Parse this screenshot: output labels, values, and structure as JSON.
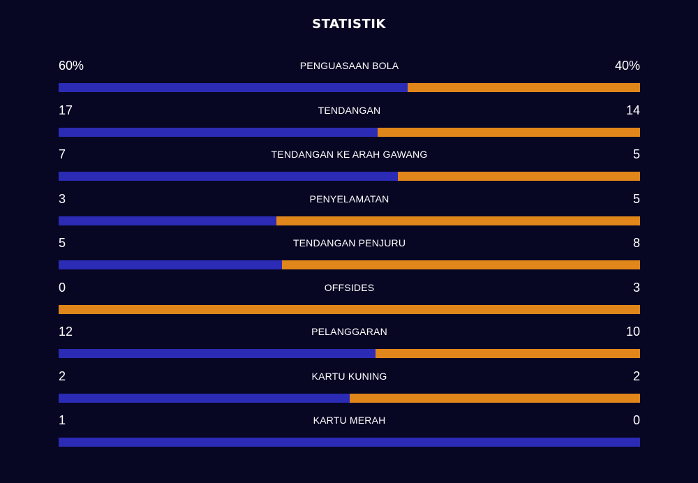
{
  "title": "STATISTIK",
  "colors": {
    "background": "#070724",
    "home_bar": "#2b2bb5",
    "away_bar": "#e0861a"
  },
  "stats": [
    {
      "label": "PENGUASAAN BOLA",
      "home": "60%",
      "away": "40%",
      "home_value": 60,
      "away_value": 40
    },
    {
      "label": "TENDANGAN",
      "home": "17",
      "away": "14",
      "home_value": 17,
      "away_value": 14
    },
    {
      "label": "TENDANGAN KE ARAH GAWANG",
      "home": "7",
      "away": "5",
      "home_value": 7,
      "away_value": 5
    },
    {
      "label": "PENYELAMATAN",
      "home": "3",
      "away": "5",
      "home_value": 3,
      "away_value": 5
    },
    {
      "label": "TENDANGAN PENJURU",
      "home": "5",
      "away": "8",
      "home_value": 5,
      "away_value": 8
    },
    {
      "label": "OFFSIDES",
      "home": "0",
      "away": "3",
      "home_value": 0,
      "away_value": 3
    },
    {
      "label": "PELANGGARAN",
      "home": "12",
      "away": "10",
      "home_value": 12,
      "away_value": 10
    },
    {
      "label": "KARTU KUNING",
      "home": "2",
      "away": "2",
      "home_value": 2,
      "away_value": 2
    },
    {
      "label": "KARTU MERAH",
      "home": "1",
      "away": "0",
      "home_value": 1,
      "away_value": 0
    }
  ]
}
